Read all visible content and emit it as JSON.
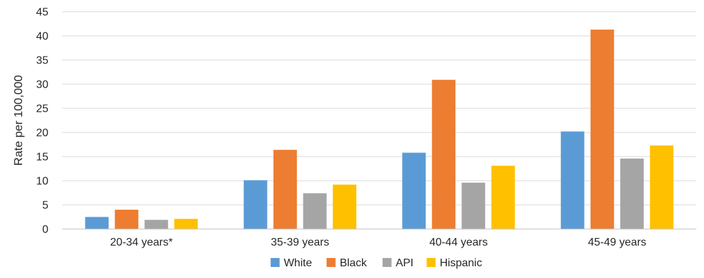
{
  "chart_data": {
    "type": "bar",
    "title": "",
    "xlabel": "",
    "ylabel": "Rate per 100,000",
    "ylim": [
      0,
      45
    ],
    "y_ticks": [
      0,
      5,
      10,
      15,
      20,
      25,
      30,
      35,
      40,
      45
    ],
    "grid": true,
    "legend_position": "bottom",
    "categories": [
      "20-34 years*",
      "35-39 years",
      "40-44 years",
      "45-49 years"
    ],
    "series": [
      {
        "name": "White",
        "color": "#5B9BD5",
        "values": [
          2.5,
          10.1,
          15.8,
          20.2
        ]
      },
      {
        "name": "Black",
        "color": "#ED7D31",
        "values": [
          4.0,
          16.4,
          30.9,
          41.3
        ]
      },
      {
        "name": "API",
        "color": "#A5A5A5",
        "values": [
          1.9,
          7.4,
          9.6,
          14.6
        ]
      },
      {
        "name": "Hispanic",
        "color": "#FFC000",
        "values": [
          2.1,
          9.2,
          13.1,
          17.3
        ]
      }
    ]
  }
}
